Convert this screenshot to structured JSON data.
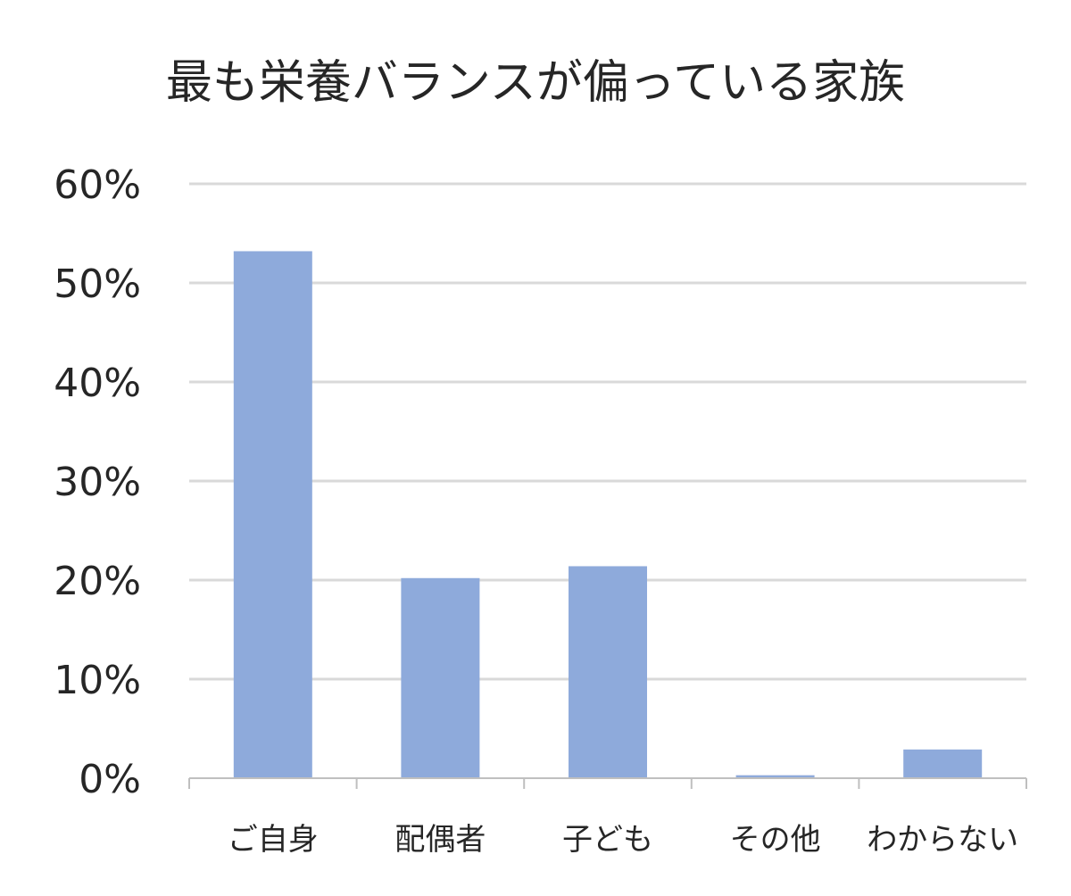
{
  "chart_data": {
    "type": "bar",
    "title": "最も栄養バランスが偏っている家族",
    "categories": [
      "ご自身",
      "配偶者",
      "子ども",
      "その他",
      "わからない"
    ],
    "values": [
      53.2,
      20.2,
      21.4,
      0.3,
      2.9
    ],
    "yticks": [
      "0%",
      "10%",
      "20%",
      "30%",
      "40%",
      "50%",
      "60%"
    ],
    "ylim": [
      0,
      60
    ],
    "xlabel": "",
    "ylabel": "",
    "grid": true,
    "legend": "none",
    "colors": {
      "bar": "#8eaadb",
      "grid": "#d9d9d9",
      "axis": "#bfbfbf",
      "text": "#262626"
    }
  }
}
